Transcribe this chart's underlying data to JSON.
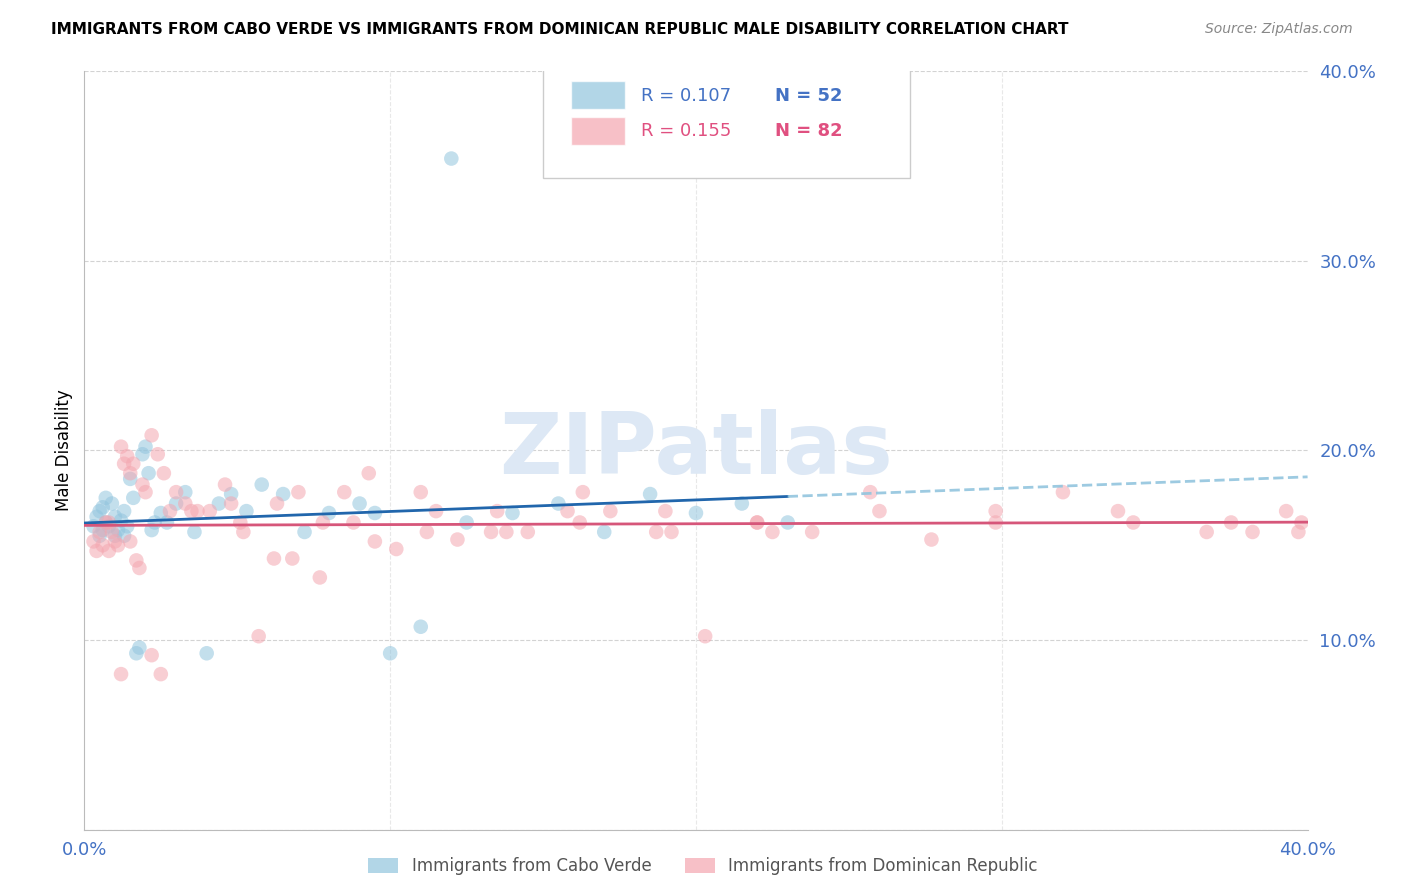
{
  "title": "IMMIGRANTS FROM CABO VERDE VS IMMIGRANTS FROM DOMINICAN REPUBLIC MALE DISABILITY CORRELATION CHART",
  "source": "Source: ZipAtlas.com",
  "ylabel": "Male Disability",
  "xlim": [
    0.0,
    0.4
  ],
  "ylim": [
    0.0,
    0.4
  ],
  "cabo_verde_color": "#92c5de",
  "cabo_verde_line_color": "#2166ac",
  "dominican_color": "#f4a6b0",
  "dominican_line_color": "#d6567a",
  "dashed_line_color": "#92c5de",
  "cabo_verde_R": 0.107,
  "cabo_verde_N": 52,
  "dominican_R": 0.155,
  "dominican_N": 82,
  "tick_color": "#4472c4",
  "grid_color": "#d3d3d3",
  "watermark_color": "#dde8f5",
  "cabo_verde_x": [
    0.003,
    0.004,
    0.005,
    0.005,
    0.006,
    0.006,
    0.007,
    0.007,
    0.008,
    0.009,
    0.01,
    0.01,
    0.011,
    0.012,
    0.013,
    0.013,
    0.014,
    0.015,
    0.016,
    0.017,
    0.018,
    0.019,
    0.02,
    0.021,
    0.022,
    0.023,
    0.025,
    0.027,
    0.03,
    0.033,
    0.036,
    0.04,
    0.044,
    0.048,
    0.053,
    0.058,
    0.065,
    0.072,
    0.08,
    0.09,
    0.1,
    0.11,
    0.125,
    0.14,
    0.155,
    0.17,
    0.185,
    0.2,
    0.215,
    0.23,
    0.12,
    0.095
  ],
  "cabo_verde_y": [
    0.16,
    0.165,
    0.155,
    0.168,
    0.17,
    0.158,
    0.162,
    0.175,
    0.16,
    0.172,
    0.155,
    0.165,
    0.158,
    0.163,
    0.168,
    0.155,
    0.16,
    0.185,
    0.175,
    0.093,
    0.096,
    0.198,
    0.202,
    0.188,
    0.158,
    0.162,
    0.167,
    0.162,
    0.172,
    0.178,
    0.157,
    0.093,
    0.172,
    0.177,
    0.168,
    0.182,
    0.177,
    0.157,
    0.167,
    0.172,
    0.093,
    0.107,
    0.162,
    0.167,
    0.172,
    0.157,
    0.177,
    0.167,
    0.172,
    0.162,
    0.354,
    0.167
  ],
  "dominican_x": [
    0.003,
    0.004,
    0.005,
    0.006,
    0.007,
    0.008,
    0.009,
    0.01,
    0.011,
    0.012,
    0.013,
    0.014,
    0.015,
    0.016,
    0.017,
    0.018,
    0.019,
    0.02,
    0.022,
    0.024,
    0.026,
    0.028,
    0.03,
    0.033,
    0.037,
    0.041,
    0.046,
    0.051,
    0.057,
    0.063,
    0.07,
    0.077,
    0.085,
    0.093,
    0.102,
    0.112,
    0.122,
    0.133,
    0.145,
    0.158,
    0.172,
    0.187,
    0.203,
    0.22,
    0.238,
    0.257,
    0.277,
    0.298,
    0.32,
    0.343,
    0.367,
    0.382,
    0.393,
    0.398,
    0.008,
    0.015,
    0.025,
    0.035,
    0.048,
    0.062,
    0.078,
    0.095,
    0.115,
    0.138,
    0.163,
    0.19,
    0.22,
    0.052,
    0.068,
    0.088,
    0.11,
    0.135,
    0.162,
    0.192,
    0.225,
    0.26,
    0.298,
    0.338,
    0.375,
    0.397,
    0.012,
    0.022
  ],
  "dominican_y": [
    0.152,
    0.147,
    0.157,
    0.15,
    0.162,
    0.147,
    0.157,
    0.152,
    0.15,
    0.202,
    0.193,
    0.197,
    0.188,
    0.193,
    0.142,
    0.138,
    0.182,
    0.178,
    0.208,
    0.198,
    0.188,
    0.168,
    0.178,
    0.172,
    0.168,
    0.168,
    0.182,
    0.162,
    0.102,
    0.172,
    0.178,
    0.133,
    0.178,
    0.188,
    0.148,
    0.157,
    0.153,
    0.157,
    0.157,
    0.168,
    0.168,
    0.157,
    0.102,
    0.162,
    0.157,
    0.178,
    0.153,
    0.162,
    0.178,
    0.162,
    0.157,
    0.157,
    0.168,
    0.162,
    0.162,
    0.152,
    0.082,
    0.168,
    0.172,
    0.143,
    0.162,
    0.152,
    0.168,
    0.157,
    0.178,
    0.168,
    0.162,
    0.157,
    0.143,
    0.162,
    0.178,
    0.168,
    0.162,
    0.157,
    0.157,
    0.168,
    0.168,
    0.168,
    0.162,
    0.157,
    0.082,
    0.092
  ],
  "legend_R_cv": "R = 0.107",
  "legend_N_cv": "N = 52",
  "legend_R_dr": "R = 0.155",
  "legend_N_dr": "N = 82",
  "legend_label_cv": "Immigrants from Cabo Verde",
  "legend_label_dr": "Immigrants from Dominican Republic"
}
